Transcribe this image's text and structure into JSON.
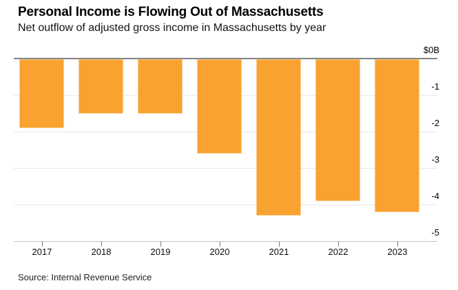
{
  "header": {
    "title": "Personal Income is Flowing Out of Massachusetts",
    "subtitle": "Net outflow of adjusted gross income in Massachusetts by year"
  },
  "footer": {
    "source": "Source: Internal Revenue Service"
  },
  "chart_data": {
    "type": "bar",
    "title": "Personal Income is Flowing Out of Massachusetts",
    "subtitle": "Net outflow of adjusted gross income in Massachusetts by year",
    "categories": [
      "2017",
      "2018",
      "2019",
      "2020",
      "2021",
      "2022",
      "2023"
    ],
    "values": [
      -1.9,
      -1.5,
      -1.5,
      -2.6,
      -4.3,
      -3.9,
      -4.2
    ],
    "units": "billions USD",
    "y_tick_labels": [
      "$0B",
      "-1",
      "-2",
      "-3",
      "-4",
      "-5"
    ],
    "y_tick_values": [
      0,
      -1,
      -2,
      -3,
      -4,
      -5
    ],
    "ylim": [
      -5,
      0
    ],
    "xlabel": "",
    "ylabel": "$0B",
    "grid": true,
    "legend": false,
    "colors": {
      "bar": "#FAA22F",
      "zero_line": "#828282",
      "gridline": "#E8E8E8",
      "axis_line": "#C2C2C2",
      "tick": "#777777"
    }
  }
}
